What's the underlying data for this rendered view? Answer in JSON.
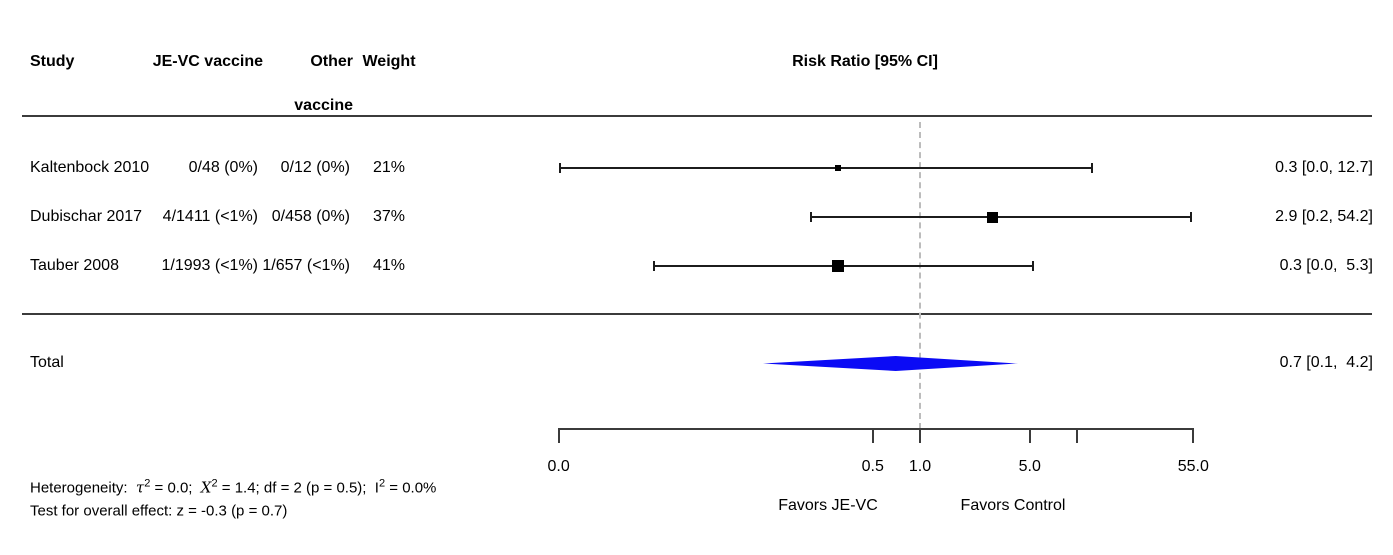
{
  "header": {
    "study": "Study",
    "je_vc": "JE-VC vaccine",
    "other_line1": "Other",
    "other_line2": "vaccine",
    "weight": "Weight",
    "risk_ratio": "Risk Ratio [95% CI]"
  },
  "rows": [
    {
      "study": "Kaltenbock 2010",
      "je_vc": "0/48 (0%)",
      "other": "0/12 (0%)",
      "weight": "21%",
      "rr_label": "0.3 [0.0, 12.7]"
    },
    {
      "study": "Dubischar 2017",
      "je_vc": "4/1411 (<1%)",
      "other": "0/458 (0%)",
      "weight": "37%",
      "rr_label": "2.9 [0.2, 54.2]"
    },
    {
      "study": "Tauber 2008",
      "je_vc": "1/1993 (<1%)",
      "other": "1/657 (<1%)",
      "weight": "41%",
      "rr_label": "0.3 [0.0,  5.3]"
    }
  ],
  "total": {
    "label": "Total",
    "rr_label": "0.7 [0.1,  4.2]"
  },
  "footer": {
    "lines": [
      {
        "parts": [
          {
            "t": "Heterogeneity:  "
          },
          {
            "t": "τ",
            "pm": true
          },
          {
            "sup": "2"
          },
          {
            "t": " = 0.0;  "
          },
          {
            "t": "Χ",
            "pm": true
          },
          {
            "sup": "2"
          },
          {
            "t": " = 1.4; df = 2 (p = 0.5);  I"
          },
          {
            "sup": "2"
          },
          {
            "t": " = 0.0%"
          }
        ]
      },
      {
        "parts": [
          {
            "t": "Test for overall effect: z = -0.3 (p = 0.7)"
          }
        ]
      }
    ]
  },
  "chart_data": {
    "type": "forest",
    "x_scale": "log",
    "columns": [
      "Study",
      "JE-VC vaccine",
      "Other vaccine",
      "Weight",
      "Risk Ratio [95% CI]"
    ],
    "axis": {
      "range": [
        0.005,
        55
      ],
      "ref_value": 1.0,
      "ticks": [
        {
          "value": 0.005,
          "label": "0.0"
        },
        {
          "value": 0.5,
          "label": "0.5"
        },
        {
          "value": 1.0,
          "label": "1.0"
        },
        {
          "value": 5.0,
          "label": "5.0"
        },
        {
          "value": 10.0,
          "label": ""
        },
        {
          "value": 55.0,
          "label": "55.0"
        }
      ]
    },
    "studies": [
      {
        "name": "Kaltenbock 2010",
        "jevc_events": "0/48 (0%)",
        "other_events": "0/12 (0%)",
        "weight_pct": 21,
        "rr": 0.3,
        "ci": [
          0.0,
          12.7
        ],
        "plot_ci": [
          0.005,
          12.7
        ]
      },
      {
        "name": "Dubischar 2017",
        "jevc_events": "4/1411 (<1%)",
        "other_events": "0/458 (0%)",
        "weight_pct": 37,
        "rr": 2.9,
        "ci": [
          0.2,
          54.2
        ],
        "plot_ci": [
          0.2,
          54.2
        ]
      },
      {
        "name": "Tauber 2008",
        "jevc_events": "1/1993 (<1%)",
        "other_events": "1/657 (<1%)",
        "weight_pct": 41,
        "rr": 0.3,
        "ci": [
          0.0,
          5.3
        ],
        "plot_ci": [
          0.02,
          5.3
        ]
      }
    ],
    "summary": {
      "label": "Total",
      "rr": 0.7,
      "ci": [
        0.1,
        4.2
      ],
      "color": "#0b0bf5"
    },
    "footer_labels": {
      "favors_left": "Favors JE-VC",
      "favors_right": "Favors Control"
    },
    "heterogeneity": {
      "tau2": 0.0,
      "chi2": 1.4,
      "df": 2,
      "p_het": 0.5,
      "i2_pct": 0.0,
      "z": -0.3,
      "p_overall": 0.7
    }
  }
}
